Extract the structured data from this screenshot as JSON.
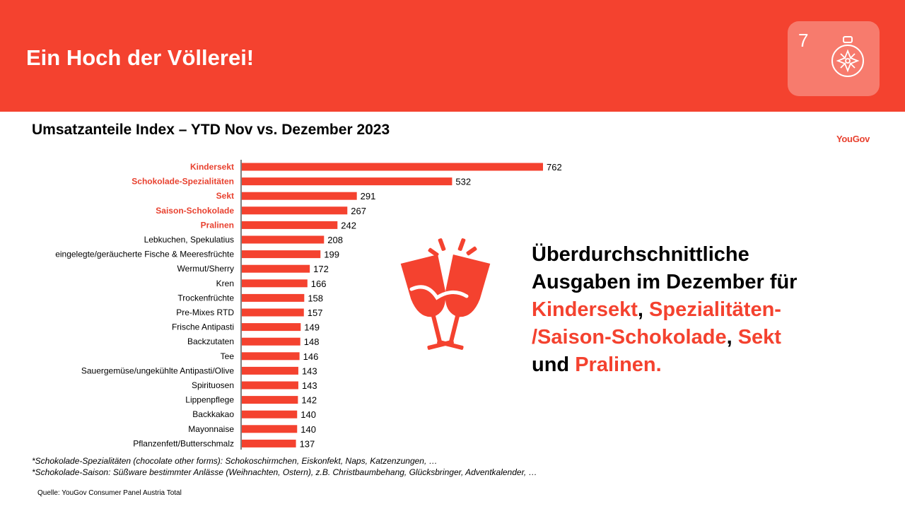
{
  "header": {
    "title": "Ein Hoch der Völlerei!",
    "page_number": "7",
    "ornament_icon": "christmas-bauble-icon",
    "background_color": "#f4422f"
  },
  "subtitle": "Umsatzanteile Index – YTD Nov vs. Dezember 2023",
  "logo_text": "YouGov",
  "chart_data": {
    "type": "bar",
    "orientation": "horizontal",
    "categories": [
      "Kindersekt",
      "Schokolade-Spezialitäten",
      "Sekt",
      "Saison-Schokolade",
      "Pralinen",
      "Lebkuchen, Spekulatius",
      "eingelegte/geräucherte Fische & Meeresfrüchte",
      "Wermut/Sherry",
      "Kren",
      "Trockenfrüchte",
      "Pre-Mixes RTD",
      "Frische Antipasti",
      "Backzutaten",
      "Tee",
      "Sauergemüse/ungekühlte Antipasti/Olive",
      "Spirituosen",
      "Lippenpflege",
      "Backkakao",
      "Mayonnaise",
      "Pflanzenfett/Butterschmalz"
    ],
    "values": [
      762,
      532,
      291,
      267,
      242,
      208,
      199,
      172,
      166,
      158,
      157,
      149,
      148,
      146,
      143,
      143,
      142,
      140,
      140,
      137
    ],
    "highlighted": [
      true,
      true,
      true,
      true,
      true,
      false,
      false,
      false,
      false,
      false,
      false,
      false,
      false,
      false,
      false,
      false,
      false,
      false,
      false,
      false
    ],
    "bar_color": "#f4422f",
    "highlight_label_color": "#e8412f",
    "data_labels": true,
    "grid": false
  },
  "callout": {
    "line1": "Überdurchschnittliche",
    "line2": "Ausgaben im Dezember für",
    "hl1": "Kindersekt",
    "sep1": ", ",
    "hl2": "Spezialitäten-",
    "hl3": "/Saison-Schokolade",
    "sep2": ", ",
    "hl4": "Sekt",
    "pre5": "und ",
    "hl5": "Pralinen."
  },
  "toast_icon": "clinking-glasses-icon",
  "footnotes": {
    "line1": "*Schokolade-Spezialitäten (chocolate other forms): Schokoschirmchen, Eiskonfekt, Naps, Katzenzungen, …",
    "line2": "*Schokolade-Saison: Süßware bestimmter Anlässe (Weihnachten, Ostern), z.B. Christbaumbehang, Glücksbringer, Adventkalender, …"
  },
  "source": "Quelle: YouGov Consumer Panel Austria Total"
}
